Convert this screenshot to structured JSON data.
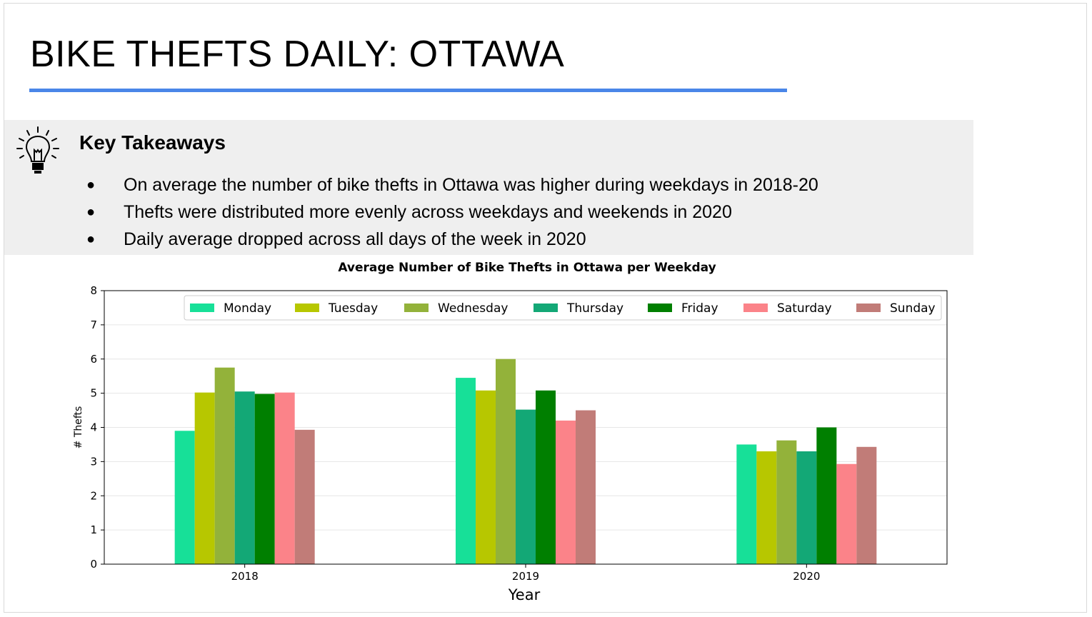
{
  "slide": {
    "title": "BIKE THEFTS DAILY: OTTAWA"
  },
  "takeaways": {
    "heading": "Key Takeaways",
    "icon": "lightbulb-icon",
    "items": [
      "On average the number of bike thefts in Ottawa was higher during weekdays in 2018-20",
      "Thefts were distributed more evenly across weekdays and weekends in 2020",
      "Daily average dropped across all days of the week in 2020"
    ]
  },
  "colors": {
    "title_rule": "#4a86e8",
    "takeaways_background": "#efefef"
  },
  "chart_data": {
    "type": "bar",
    "title": "Average Number of Bike Thefts in Ottawa per Weekday",
    "xlabel": "Year",
    "ylabel": "# Thefts",
    "ylim": [
      0,
      8
    ],
    "yticks": [
      0,
      1,
      2,
      3,
      4,
      5,
      6,
      7,
      8
    ],
    "grid": true,
    "legend_position": "top-right",
    "categories": [
      "2018",
      "2019",
      "2020"
    ],
    "series": [
      {
        "name": "Monday",
        "color": "#17e098",
        "values": [
          3.9,
          5.45,
          3.5
        ]
      },
      {
        "name": "Tuesday",
        "color": "#b7c700",
        "values": [
          5.02,
          5.08,
          3.3
        ]
      },
      {
        "name": "Wednesday",
        "color": "#93b23a",
        "values": [
          5.75,
          6.0,
          3.62
        ]
      },
      {
        "name": "Thursday",
        "color": "#13a876",
        "values": [
          5.05,
          4.52,
          3.3
        ]
      },
      {
        "name": "Friday",
        "color": "#007f00",
        "values": [
          4.98,
          5.08,
          4.0
        ]
      },
      {
        "name": "Saturday",
        "color": "#fb8389",
        "values": [
          5.02,
          4.2,
          2.93
        ]
      },
      {
        "name": "Sunday",
        "color": "#c17c78",
        "values": [
          3.93,
          4.5,
          3.43
        ]
      }
    ]
  }
}
